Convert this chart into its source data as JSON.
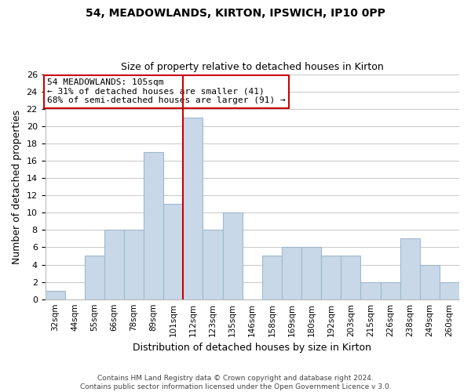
{
  "title": "54, MEADOWLANDS, KIRTON, IPSWICH, IP10 0PP",
  "subtitle": "Size of property relative to detached houses in Kirton",
  "xlabel": "Distribution of detached houses by size in Kirton",
  "ylabel": "Number of detached properties",
  "categories": [
    "32sqm",
    "44sqm",
    "55sqm",
    "66sqm",
    "78sqm",
    "89sqm",
    "101sqm",
    "112sqm",
    "123sqm",
    "135sqm",
    "146sqm",
    "158sqm",
    "169sqm",
    "180sqm",
    "192sqm",
    "203sqm",
    "215sqm",
    "226sqm",
    "238sqm",
    "249sqm",
    "260sqm"
  ],
  "values": [
    1,
    0,
    5,
    8,
    8,
    17,
    11,
    21,
    8,
    10,
    0,
    5,
    6,
    6,
    5,
    5,
    2,
    2,
    7,
    4,
    2
  ],
  "bar_color": "#c8d8e8",
  "bar_edge_color": "#a0b8cc",
  "vline_x_index": 6,
  "vline_color": "#cc0000",
  "ylim": [
    0,
    26
  ],
  "yticks": [
    0,
    2,
    4,
    6,
    8,
    10,
    12,
    14,
    16,
    18,
    20,
    22,
    24,
    26
  ],
  "annotation_title": "54 MEADOWLANDS: 105sqm",
  "annotation_line1": "← 31% of detached houses are smaller (41)",
  "annotation_line2": "68% of semi-detached houses are larger (91) →",
  "annotation_box_color": "#ffffff",
  "annotation_box_edge_color": "#cc0000",
  "footer_line1": "Contains HM Land Registry data © Crown copyright and database right 2024.",
  "footer_line2": "Contains public sector information licensed under the Open Government Licence v 3.0.",
  "background_color": "#ffffff",
  "grid_color": "#cccccc"
}
